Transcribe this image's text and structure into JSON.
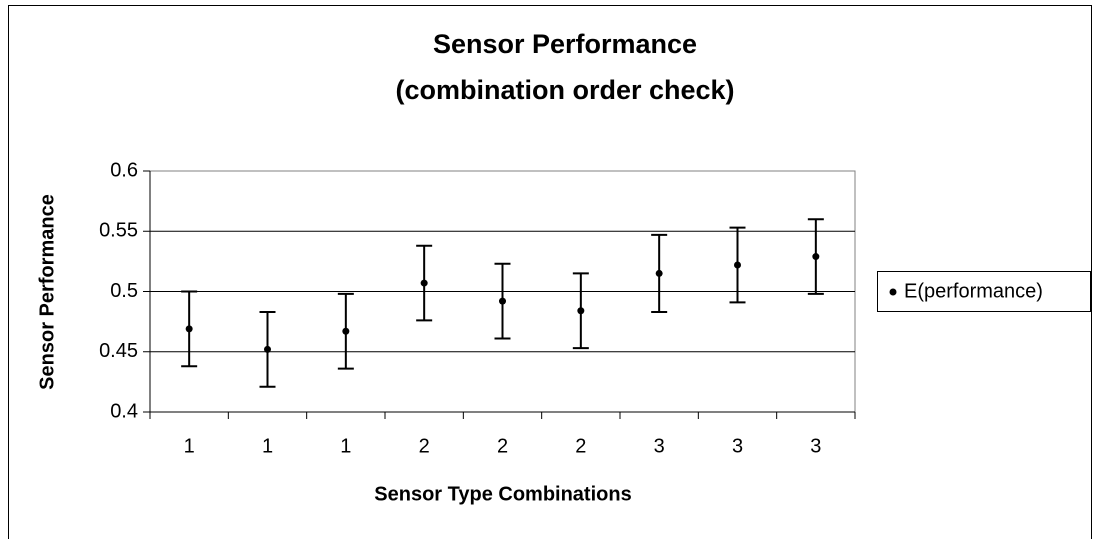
{
  "chart_data": {
    "type": "errorbar",
    "title": "Sensor Performance",
    "subtitle": "(combination order check)",
    "x_label": "Sensor Type Combinations",
    "y_label": "Sensor Performance",
    "categories": [
      "1",
      "1",
      "1",
      "2",
      "2",
      "2",
      "3",
      "3",
      "3"
    ],
    "series": [
      {
        "name": "E(performance)",
        "color": "#000000",
        "values": [
          0.469,
          0.452,
          0.467,
          0.507,
          0.492,
          0.484,
          0.515,
          0.522,
          0.529
        ],
        "errors": [
          0.031,
          0.031,
          0.031,
          0.031,
          0.031,
          0.031,
          0.032,
          0.031,
          0.031
        ]
      }
    ],
    "ylim": [
      0.4,
      0.6
    ],
    "yticks": [
      0.4,
      0.45,
      0.5,
      0.55,
      0.6
    ],
    "grid": true,
    "legend": "right"
  }
}
